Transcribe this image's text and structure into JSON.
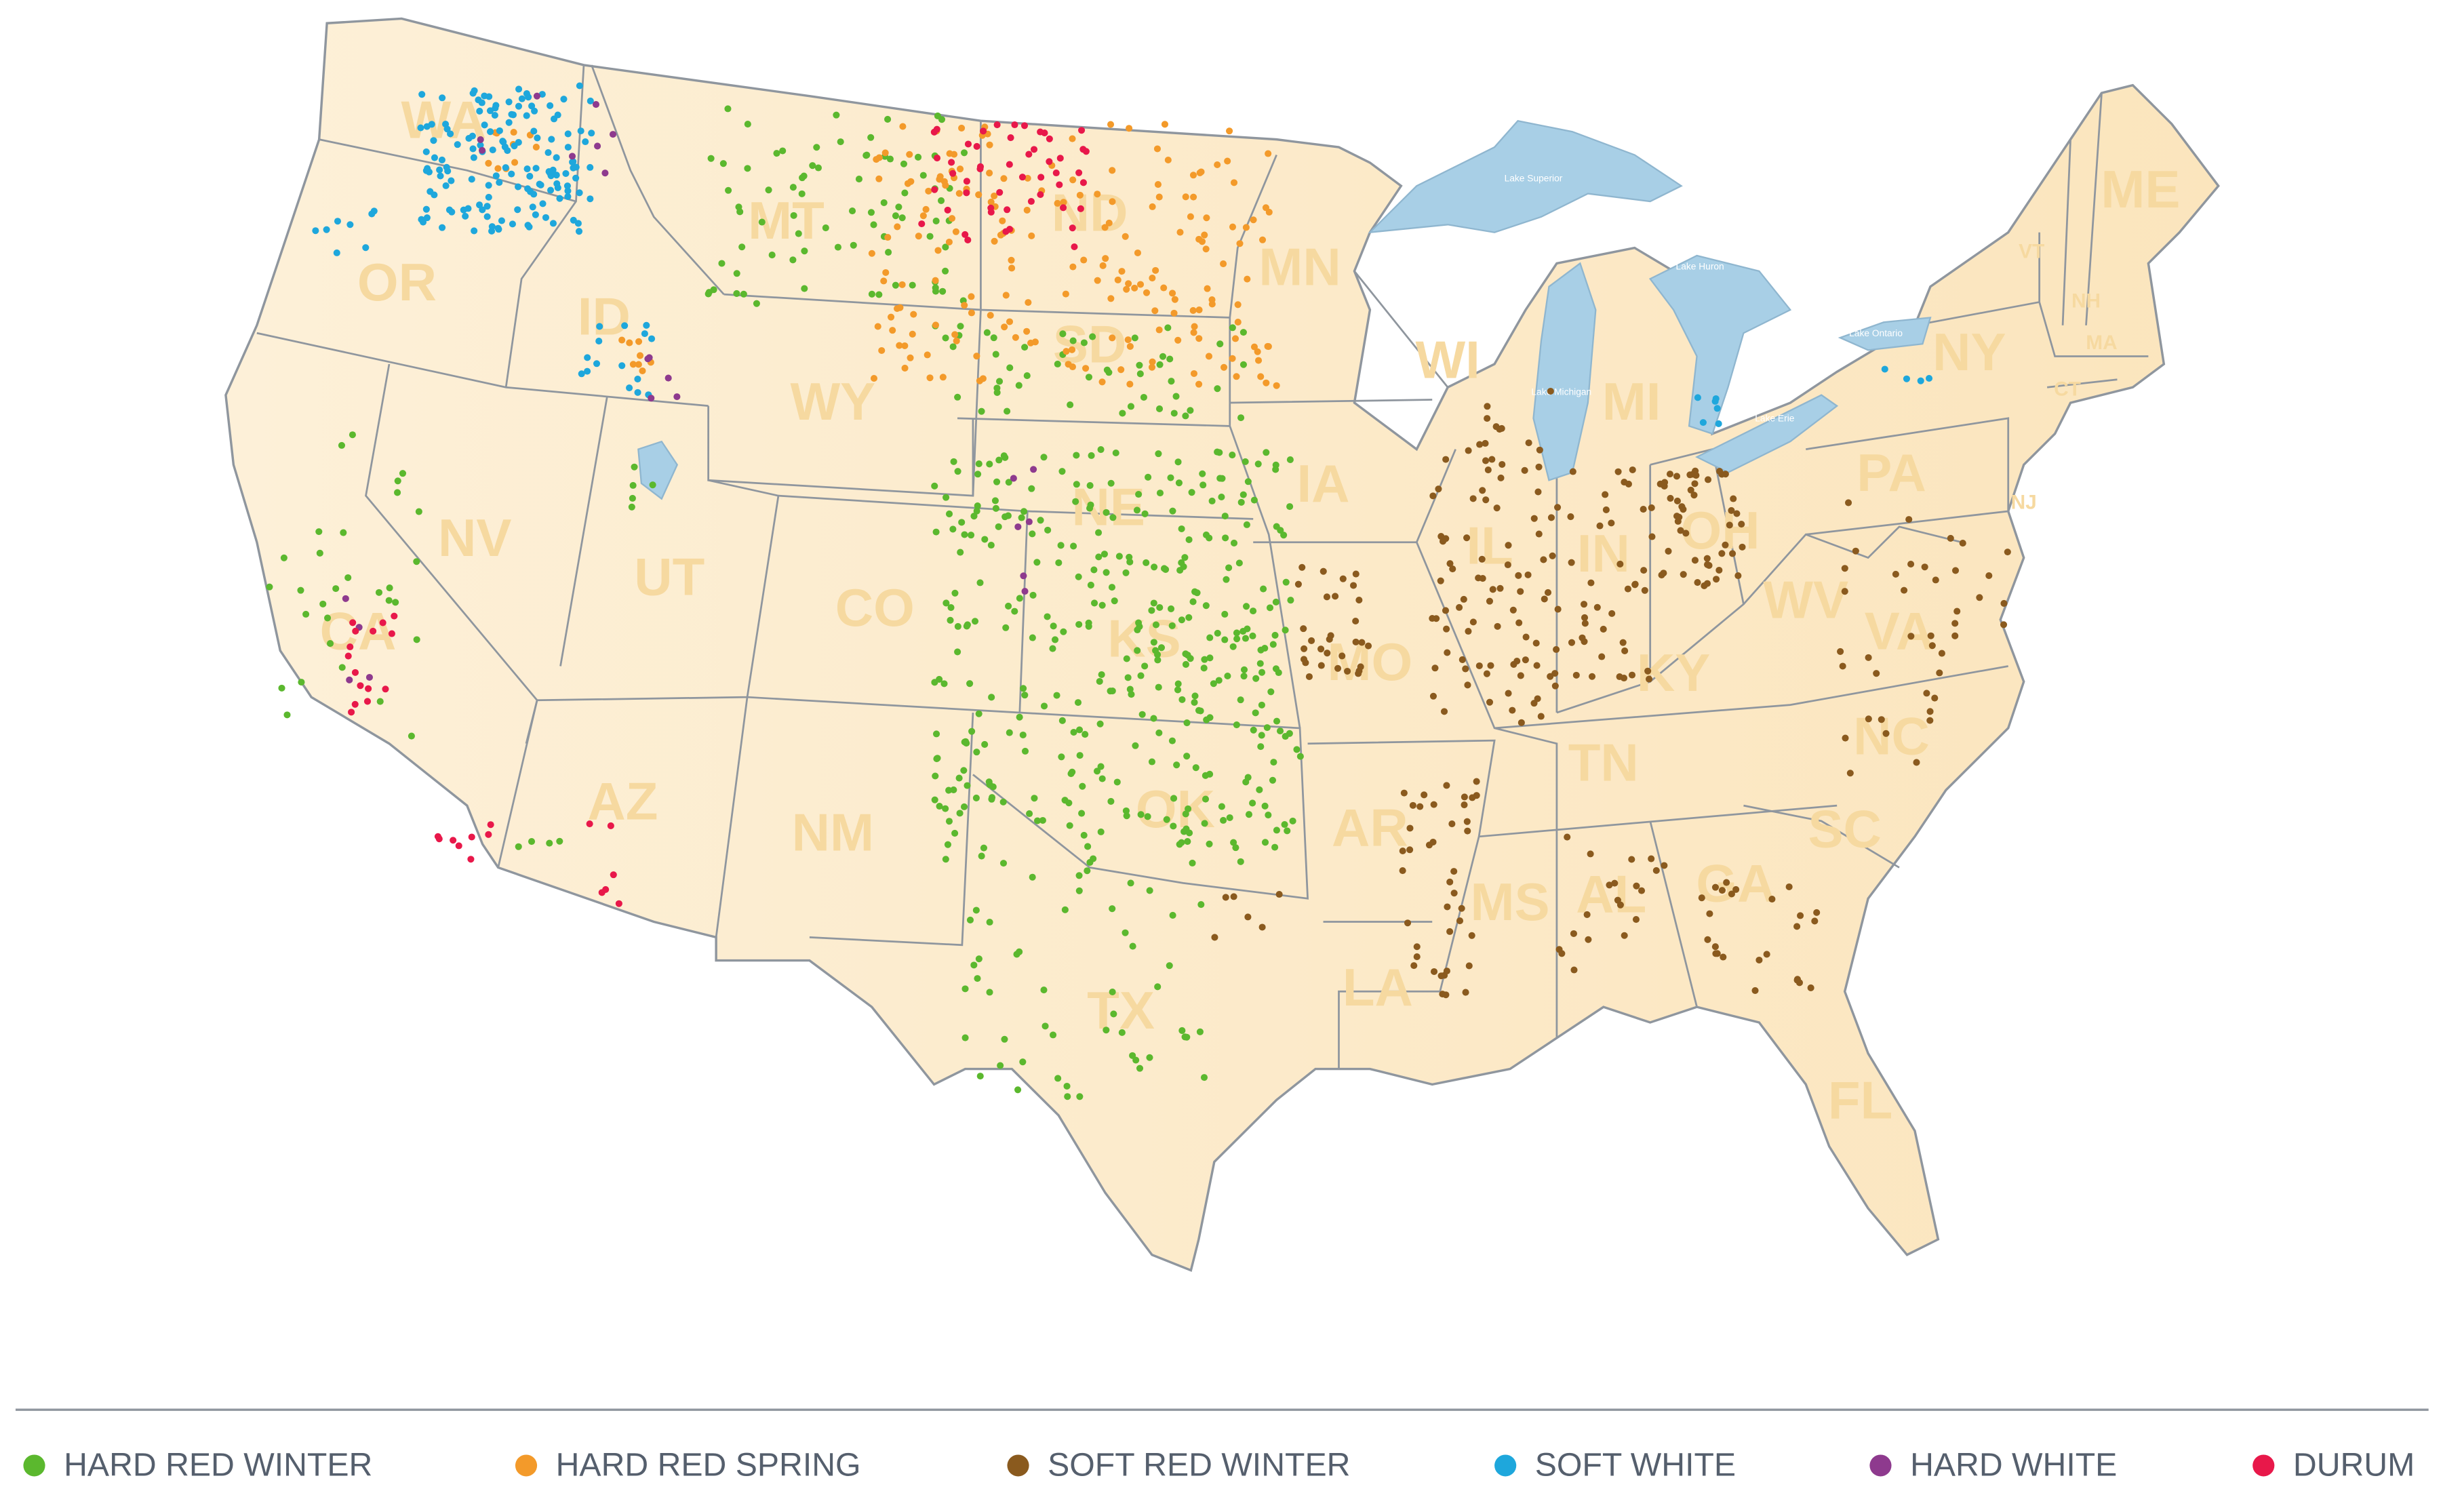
{
  "states": [
    {
      "label": "WA"
    },
    {
      "label": "OR"
    },
    {
      "label": "ID"
    },
    {
      "label": "MT"
    },
    {
      "label": "ND"
    },
    {
      "label": "MN"
    },
    {
      "label": "WI"
    },
    {
      "label": "MI"
    },
    {
      "label": "NY"
    },
    {
      "label": "ME"
    },
    {
      "label": "VT"
    },
    {
      "label": "NH"
    },
    {
      "label": "MA"
    },
    {
      "label": "CT"
    },
    {
      "label": "NJ"
    },
    {
      "label": "PA"
    },
    {
      "label": "OH"
    },
    {
      "label": "IN"
    },
    {
      "label": "IL"
    },
    {
      "label": "IA"
    },
    {
      "label": "NE"
    },
    {
      "label": "SD"
    },
    {
      "label": "WY"
    },
    {
      "label": "NV"
    },
    {
      "label": "UT"
    },
    {
      "label": "CO"
    },
    {
      "label": "KS"
    },
    {
      "label": "MO"
    },
    {
      "label": "KY"
    },
    {
      "label": "WV"
    },
    {
      "label": "VA"
    },
    {
      "label": "NC"
    },
    {
      "label": "TN"
    },
    {
      "label": "AR"
    },
    {
      "label": "OK"
    },
    {
      "label": "NM"
    },
    {
      "label": "AZ"
    },
    {
      "label": "CA"
    },
    {
      "label": "TX"
    },
    {
      "label": "LA"
    },
    {
      "label": "MS"
    },
    {
      "label": "AL"
    },
    {
      "label": "GA"
    },
    {
      "label": "SC"
    },
    {
      "label": "FL"
    }
  ],
  "lakes": [
    {
      "label": "Lake Superior"
    },
    {
      "label": "Lake Michigan"
    },
    {
      "label": "Lake Huron"
    },
    {
      "label": "Lake Erie"
    },
    {
      "label": "Lake Ontario"
    }
  ],
  "legend": {
    "items": [
      {
        "name": "HARD RED WINTER",
        "color": "#5bb82e"
      },
      {
        "name": "HARD RED SPRING",
        "color": "#f39a2a"
      },
      {
        "name": "SOFT RED WINTER",
        "color": "#8a5a1e"
      },
      {
        "name": "SOFT WHITE",
        "color": "#1ea7dc"
      },
      {
        "name": "HARD WHITE",
        "color": "#8e3a8e"
      },
      {
        "name": "DURUM",
        "color": "#e8184a"
      }
    ]
  }
}
